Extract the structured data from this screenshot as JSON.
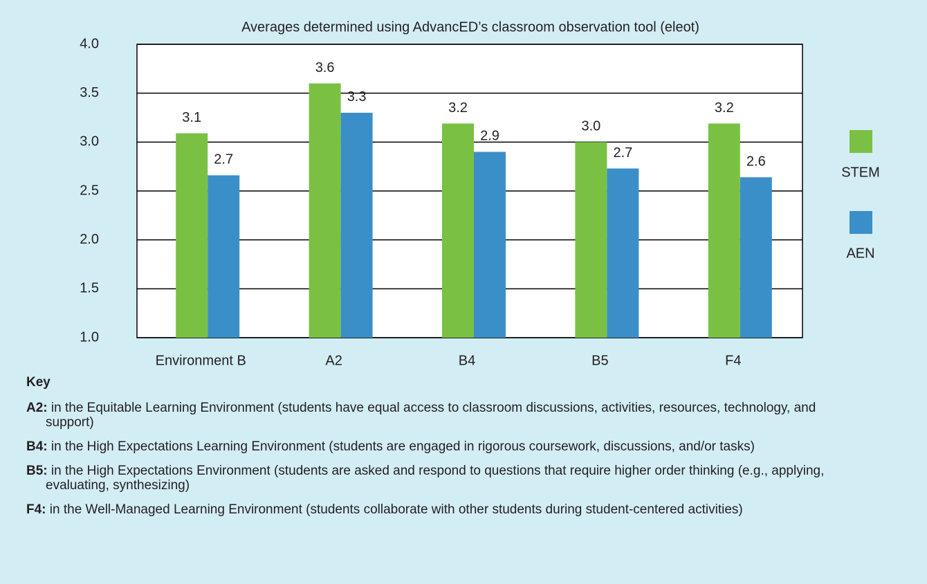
{
  "chart_data": {
    "type": "bar",
    "title": "Averages determined using AdvancED’s classroom observation tool (eleot)",
    "categories": [
      "Environment B",
      "A2",
      "B4",
      "B5",
      "F4"
    ],
    "series": [
      {
        "name": "STEM",
        "color": "#7ac143",
        "values": [
          3.09,
          3.6,
          3.19,
          3.0,
          3.19
        ],
        "value_labels": [
          "3.1",
          "3.6",
          "3.2",
          "3.0",
          "3.2"
        ]
      },
      {
        "name": "AEN",
        "color": "#3b8fc9",
        "values": [
          2.66,
          3.3,
          2.9,
          2.73,
          2.64
        ],
        "value_labels": [
          "2.7",
          "3.3",
          "2.9",
          "2.7",
          "2.6"
        ]
      }
    ],
    "ylim": [
      1,
      4
    ],
    "yticks": [
      {
        "value": 1,
        "label": "1.0"
      },
      {
        "value": 1.5,
        "label": "1.5"
      },
      {
        "value": 2,
        "label": "2.0"
      },
      {
        "value": 2.5,
        "label": "2.5"
      },
      {
        "value": 3,
        "label": "3.0"
      },
      {
        "value": 3.5,
        "label": "3.5"
      },
      {
        "value": 4,
        "label": "4.0"
      }
    ],
    "grid": true,
    "legend": "right"
  },
  "key": {
    "title": "Key",
    "items": [
      {
        "term": "A2:",
        "text": "in the Equitable Learning Environment (students have equal access to classroom discussions, activities, resources, technology, and support)"
      },
      {
        "term": "B4:",
        "text": "in the High Expectations Learning Environment (students are engaged in rigorous coursework, discussions, and/or tasks)"
      },
      {
        "term": "B5:",
        "text": "in the High Expectations Environment (students are asked and respond to questions that require higher order thinking (e.g., applying, evaluating, synthesizing)"
      },
      {
        "term": "F4:",
        "text": "in the Well-Managed Learning Environment (students collaborate with other students during student-centered activities)"
      }
    ]
  }
}
